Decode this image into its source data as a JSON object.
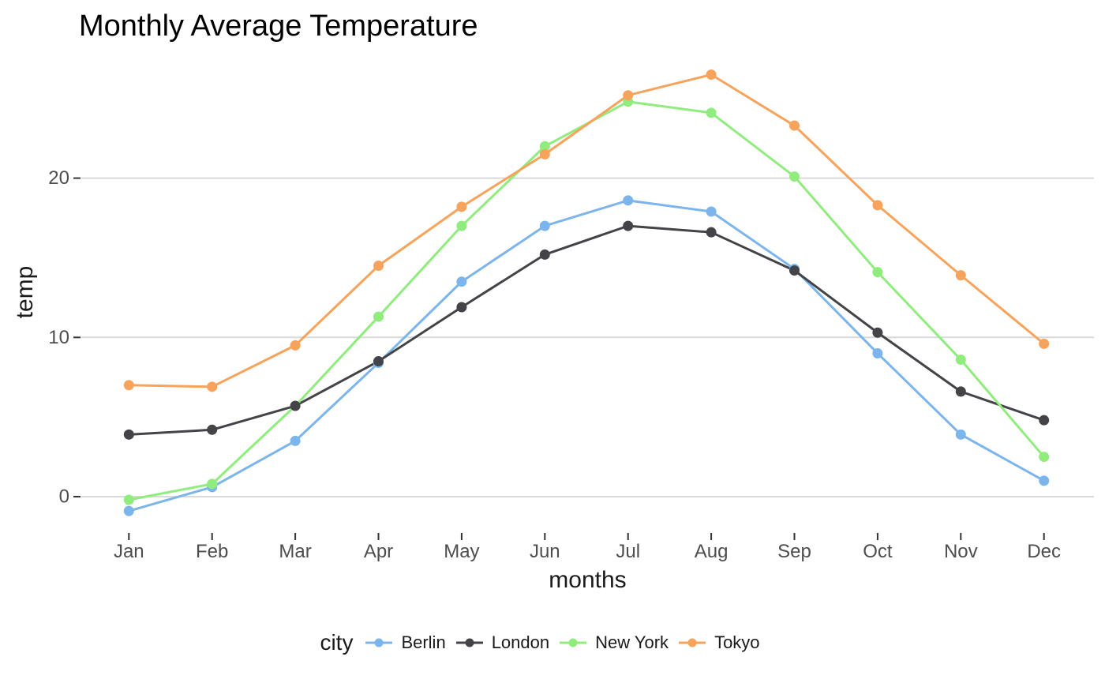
{
  "chart_data": {
    "type": "line",
    "title": "Monthly Average Temperature",
    "xlabel": "months",
    "ylabel": "temp",
    "legend_title": "city",
    "legend_position": "bottom",
    "grid": "horizontal major gridlines only",
    "background": "#ffffff",
    "gridline_color": "#d9d9d9",
    "tick_color": "#333333",
    "axis_text_color": "#4d4d4d",
    "categories": [
      "Jan",
      "Feb",
      "Mar",
      "Apr",
      "May",
      "Jun",
      "Jul",
      "Aug",
      "Sep",
      "Oct",
      "Nov",
      "Dec"
    ],
    "yticks": [
      "0",
      "10",
      "20"
    ],
    "ylim": [
      -2.3,
      27.9
    ],
    "marker_draw_order": [
      "Berlin",
      "New York",
      "Tokyo",
      "London"
    ],
    "series": [
      {
        "name": "Berlin",
        "color": "#7cb5ec",
        "values": [
          -0.9,
          0.6,
          3.5,
          8.4,
          13.5,
          17.0,
          18.6,
          17.9,
          14.3,
          9.0,
          3.9,
          1.0
        ]
      },
      {
        "name": "London",
        "color": "#434348",
        "values": [
          3.9,
          4.2,
          5.7,
          8.5,
          11.9,
          15.2,
          17.0,
          16.6,
          14.2,
          10.3,
          6.6,
          4.8
        ]
      },
      {
        "name": "New York",
        "color": "#90ed7d",
        "values": [
          -0.2,
          0.8,
          5.7,
          11.3,
          17.0,
          22.0,
          24.8,
          24.1,
          20.1,
          14.1,
          8.6,
          2.5
        ]
      },
      {
        "name": "Tokyo",
        "color": "#f7a35c",
        "values": [
          7.0,
          6.9,
          9.5,
          14.5,
          18.2,
          21.5,
          25.2,
          26.5,
          23.3,
          18.3,
          13.9,
          9.6
        ]
      }
    ]
  }
}
